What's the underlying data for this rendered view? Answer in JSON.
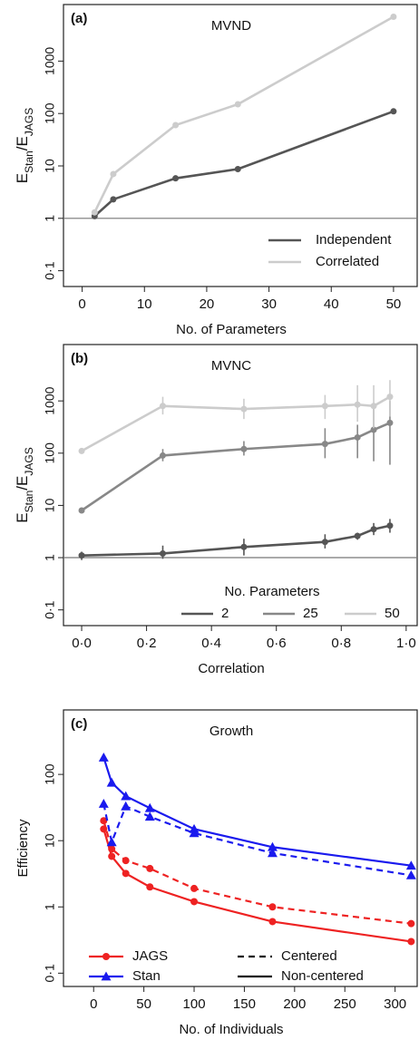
{
  "chart_data": [
    {
      "type": "line",
      "panel": "(a)",
      "title": "MVND",
      "xlabel": "No. of Parameters",
      "ylabel": [
        "E",
        "Stan",
        "/E",
        "JAGS"
      ],
      "log_y": true,
      "xlim": [
        -3,
        53.8
      ],
      "ylim": [
        0.05,
        12000
      ],
      "xticks": [
        0,
        10,
        20,
        30,
        40,
        50
      ],
      "yticks": [
        {
          "value": 0.1,
          "label": "0·1"
        },
        1,
        10,
        100,
        1000
      ],
      "hline": 1,
      "legend_loc": "lower right",
      "series": [
        {
          "name": "Independent",
          "color": "#555555",
          "x": [
            2,
            5,
            15,
            25,
            50
          ],
          "values": [
            1.1,
            2.3,
            5.8,
            8.7,
            110
          ]
        },
        {
          "name": "Correlated",
          "color": "#cccccc",
          "x": [
            2,
            5,
            15,
            25,
            50
          ],
          "values": [
            1.3,
            7,
            60,
            150,
            7000
          ]
        }
      ]
    },
    {
      "type": "line",
      "panel": "(b)",
      "title": "MVNC",
      "xlabel": "Correlation",
      "ylabel": [
        "E",
        "Stan",
        "/E",
        "JAGS"
      ],
      "log_y": true,
      "xlim": [
        -0.056,
        1.034
      ],
      "ylim": [
        0.05,
        12000
      ],
      "xticks": [
        {
          "value": 0,
          "label": "0·0"
        },
        {
          "value": 0.2,
          "label": "0·2"
        },
        {
          "value": 0.4,
          "label": "0·4"
        },
        {
          "value": 0.6,
          "label": "0·6"
        },
        {
          "value": 0.8,
          "label": "0·8"
        },
        {
          "value": 1,
          "label": "1·0"
        }
      ],
      "yticks": [
        {
          "value": 0.1,
          "label": "0·1"
        },
        1,
        10,
        100,
        1000
      ],
      "hline": 1,
      "legend_loc": "lower right",
      "legend_title": "No. Parameters",
      "series": [
        {
          "name": "2",
          "color": "#555555",
          "x": [
            0,
            0.25,
            0.5,
            0.75,
            0.85,
            0.9,
            0.95
          ],
          "values": [
            1.1,
            1.2,
            1.6,
            2.0,
            2.6,
            3.5,
            4.1
          ],
          "lower": [
            0.9,
            0.95,
            1.1,
            1.5,
            2.2,
            2.7,
            3.0
          ],
          "upper": [
            1.3,
            1.7,
            2.3,
            2.8,
            3.0,
            4.6,
            5.5
          ]
        },
        {
          "name": "25",
          "color": "#888888",
          "x": [
            0,
            0.25,
            0.5,
            0.75,
            0.85,
            0.9,
            0.95
          ],
          "values": [
            8,
            90,
            120,
            150,
            200,
            280,
            380
          ],
          "lower": [
            7.5,
            70,
            90,
            80,
            80,
            70,
            60
          ],
          "upper": [
            8.5,
            120,
            170,
            300,
            350,
            700,
            1000
          ]
        },
        {
          "name": "50",
          "color": "#cccccc",
          "x": [
            0,
            0.25,
            0.5,
            0.75,
            0.85,
            0.9,
            0.95
          ],
          "values": [
            110,
            800,
            700,
            800,
            850,
            800,
            1200
          ],
          "lower": [
            100,
            550,
            450,
            450,
            400,
            300,
            500
          ],
          "upper": [
            120,
            1200,
            1100,
            1300,
            2000,
            2000,
            2500
          ]
        }
      ]
    },
    {
      "type": "line",
      "panel": "(c)",
      "title": "Growth",
      "xlabel": "No. of Individuals",
      "ylabel": "Efficiency",
      "log_y": true,
      "xlim": [
        -30,
        322
      ],
      "ylim": [
        0.063,
        940
      ],
      "xticks": [
        0,
        50,
        100,
        150,
        200,
        250,
        300
      ],
      "yticks": [
        {
          "value": 0.1,
          "label": "0·1"
        },
        1,
        10,
        100
      ],
      "legend_loc": "lower left",
      "legend": [
        {
          "name": "JAGS",
          "color": "#ee2222",
          "marker": "circle"
        },
        {
          "name": "Stan",
          "color": "#1a1aee",
          "marker": "triangle"
        },
        {
          "name": "Centered",
          "dash": true
        },
        {
          "name": "Non-centered",
          "dash": false
        }
      ],
      "series": [
        {
          "color": "#ee2222",
          "marker": "circle",
          "dash": false,
          "x": [
            10,
            18,
            32,
            56,
            100,
            178,
            316
          ],
          "values": [
            15,
            5.8,
            3.2,
            2.0,
            1.2,
            0.6,
            0.3
          ]
        },
        {
          "color": "#ee2222",
          "marker": "circle",
          "dash": true,
          "x": [
            10,
            18,
            32,
            56,
            100,
            178,
            316
          ],
          "values": [
            20,
            7.5,
            5,
            3.8,
            1.9,
            1.0,
            0.56
          ]
        },
        {
          "color": "#1a1aee",
          "marker": "triangle",
          "dash": false,
          "x": [
            10,
            18,
            32,
            56,
            100,
            178,
            316
          ],
          "values": [
            180,
            75,
            47,
            31,
            15,
            8,
            4.2
          ]
        },
        {
          "color": "#1a1aee",
          "marker": "triangle",
          "dash": true,
          "x": [
            10,
            18,
            32,
            56,
            100,
            178,
            316
          ],
          "values": [
            36,
            9.5,
            33,
            23,
            13,
            6.5,
            3
          ]
        }
      ]
    }
  ]
}
